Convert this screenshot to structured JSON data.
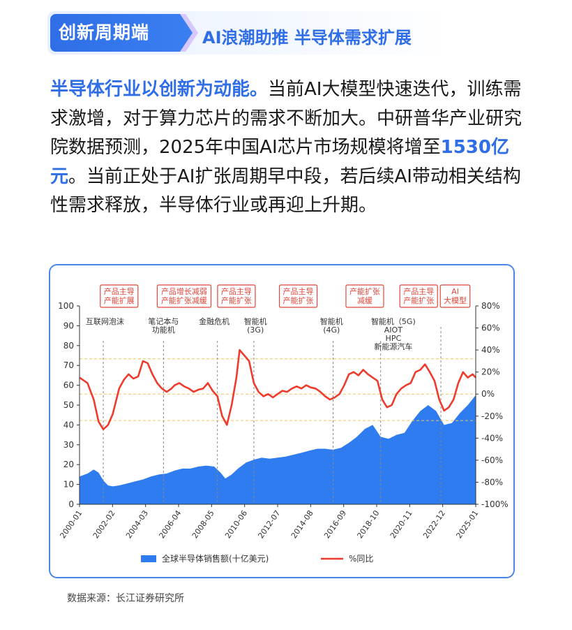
{
  "header": {
    "badge": "创新周期端",
    "subtitle": "AI浪潮助推 半导体需求扩展"
  },
  "paragraph": {
    "lead": "半导体行业以创新为动能。",
    "part1": "当前AI大模型快速迭代，训练需求激增，对于算力芯片的需求不断加大。中研普华产业研究院数据预测，2025年中国AI芯片市场规模将增至",
    "highlight": "1530亿元",
    "part2": "。当前正处于AI扩张周期早中段，若后续AI带动相关结构性需求释放，半导体行业或再迎上升期。"
  },
  "source": "数据来源：长江证券研究所",
  "colors": {
    "accent": "#2f6ee6",
    "area": "#2f7cf0",
    "line": "#ee3b2e",
    "phase_border": "#e0463a",
    "dashed_ref": "#f1c45a"
  },
  "chart_data": {
    "type": "area+line",
    "left_axis": {
      "min": 0,
      "max": 100,
      "ticks": [
        "0",
        "10",
        "20",
        "30",
        "40",
        "50",
        "60",
        "70",
        "80",
        "90",
        "100"
      ]
    },
    "right_axis": {
      "min": -100,
      "max": 80,
      "ticks": [
        "-100%",
        "-80%",
        "-60%",
        "-40%",
        "-20%",
        "0%",
        "20%",
        "40%",
        "60%",
        "80%"
      ]
    },
    "x_ticks": [
      "2000-01",
      "2002-02",
      "2004-03",
      "2006-04",
      "2008-05",
      "2010-06",
      "2012-07",
      "2014-08",
      "2016-09",
      "2018-10",
      "2020-11",
      "2022-12",
      "2025-01"
    ],
    "x_range": [
      2000.0,
      2025.0
    ],
    "ref_lines_right": [
      32,
      0,
      -24
    ],
    "legend": [
      {
        "name": "全球半导体销售额(十亿美元)",
        "kind": "area"
      },
      {
        "name": "%同比",
        "kind": "line"
      }
    ],
    "phases": [
      {
        "lines": [
          "产品主导",
          "产能扩展"
        ],
        "x": 2002.5
      },
      {
        "lines": [
          "产品增长减弱",
          "产能扩张减缓"
        ],
        "x": 2006.6
      },
      {
        "lines": [
          "产品主导",
          "产能扩张"
        ],
        "x": 2009.9
      },
      {
        "lines": [
          "产品主导",
          "产能扩张"
        ],
        "x": 2013.8
      },
      {
        "lines": [
          "产能扩张",
          "减缓"
        ],
        "x": 2018.0
      },
      {
        "lines": [
          "产品主导",
          "产能扩张"
        ],
        "x": 2021.4
      },
      {
        "lines": [
          "AI",
          "大模型"
        ],
        "x": 2023.7
      }
    ],
    "events": [
      {
        "lines": [
          "互联网泡沫"
        ],
        "x": 2001.6,
        "line_x": 2001.5
      },
      {
        "lines": [
          "笔记本与",
          "功能机"
        ],
        "x": 2005.3,
        "line_x": 2005.3
      },
      {
        "lines": [
          "金融危机"
        ],
        "x": 2008.5,
        "line_x": 2008.7
      },
      {
        "lines": [
          "智能机",
          "(3G)"
        ],
        "x": 2011.1,
        "line_x": 2011.0
      },
      {
        "lines": [
          "智能机",
          "(4G)"
        ],
        "x": 2015.9,
        "line_x": 2016.0
      },
      {
        "lines": [
          "智能机（5G)",
          "AIOT",
          "HPC",
          "新能源汽车"
        ],
        "x": 2019.8,
        "line_x": 2019.0
      }
    ],
    "sales": [
      [
        2000.0,
        14
      ],
      [
        2000.5,
        15.5
      ],
      [
        2000.9,
        17.5
      ],
      [
        2001.2,
        16
      ],
      [
        2001.5,
        12
      ],
      [
        2001.8,
        9.5
      ],
      [
        2002.1,
        9
      ],
      [
        2002.5,
        9.5
      ],
      [
        2003.0,
        10.5
      ],
      [
        2003.5,
        11.5
      ],
      [
        2004.0,
        12.5
      ],
      [
        2004.5,
        14
      ],
      [
        2005.0,
        15
      ],
      [
        2005.5,
        15.5
      ],
      [
        2006.0,
        17
      ],
      [
        2006.5,
        18
      ],
      [
        2007.0,
        18
      ],
      [
        2007.5,
        19
      ],
      [
        2008.0,
        19.5
      ],
      [
        2008.5,
        19
      ],
      [
        2008.9,
        16
      ],
      [
        2009.2,
        13
      ],
      [
        2009.6,
        15
      ],
      [
        2010.0,
        18
      ],
      [
        2010.5,
        21
      ],
      [
        2011.0,
        22.5
      ],
      [
        2011.5,
        23.5
      ],
      [
        2012.0,
        23
      ],
      [
        2012.5,
        23.5
      ],
      [
        2013.0,
        24
      ],
      [
        2013.5,
        25
      ],
      [
        2014.0,
        26
      ],
      [
        2014.5,
        27
      ],
      [
        2015.0,
        28
      ],
      [
        2015.5,
        28
      ],
      [
        2016.0,
        27.5
      ],
      [
        2016.5,
        28.5
      ],
      [
        2017.0,
        31
      ],
      [
        2017.5,
        34
      ],
      [
        2018.0,
        38
      ],
      [
        2018.5,
        40
      ],
      [
        2019.0,
        34
      ],
      [
        2019.5,
        33
      ],
      [
        2020.0,
        35
      ],
      [
        2020.5,
        36
      ],
      [
        2021.0,
        42
      ],
      [
        2021.5,
        47
      ],
      [
        2022.0,
        50
      ],
      [
        2022.5,
        47
      ],
      [
        2023.0,
        40
      ],
      [
        2023.5,
        41
      ],
      [
        2024.0,
        46
      ],
      [
        2024.5,
        50
      ],
      [
        2025.0,
        55
      ]
    ],
    "yoy": [
      [
        2000.0,
        15
      ],
      [
        2000.5,
        10
      ],
      [
        2000.9,
        -5
      ],
      [
        2001.2,
        -25
      ],
      [
        2001.5,
        -32
      ],
      [
        2001.8,
        -28
      ],
      [
        2002.1,
        -18
      ],
      [
        2002.5,
        5
      ],
      [
        2002.8,
        13
      ],
      [
        2003.1,
        18
      ],
      [
        2003.4,
        14
      ],
      [
        2003.7,
        16
      ],
      [
        2004.0,
        30
      ],
      [
        2004.3,
        28
      ],
      [
        2004.6,
        18
      ],
      [
        2004.9,
        10
      ],
      [
        2005.2,
        5
      ],
      [
        2005.5,
        2
      ],
      [
        2005.8,
        5
      ],
      [
        2006.0,
        8
      ],
      [
        2006.3,
        10
      ],
      [
        2006.6,
        7
      ],
      [
        2006.9,
        5
      ],
      [
        2007.2,
        2
      ],
      [
        2007.5,
        4
      ],
      [
        2007.8,
        5
      ],
      [
        2008.1,
        10
      ],
      [
        2008.4,
        3
      ],
      [
        2008.7,
        -2
      ],
      [
        2009.0,
        -20
      ],
      [
        2009.3,
        -28
      ],
      [
        2009.6,
        -10
      ],
      [
        2009.9,
        15
      ],
      [
        2010.1,
        40
      ],
      [
        2010.4,
        35
      ],
      [
        2010.7,
        30
      ],
      [
        2011.0,
        10
      ],
      [
        2011.3,
        2
      ],
      [
        2011.6,
        -2
      ],
      [
        2011.9,
        0
      ],
      [
        2012.2,
        -3
      ],
      [
        2012.5,
        0
      ],
      [
        2012.8,
        3
      ],
      [
        2013.1,
        2
      ],
      [
        2013.4,
        5
      ],
      [
        2013.7,
        7
      ],
      [
        2014.0,
        5
      ],
      [
        2014.3,
        8
      ],
      [
        2014.6,
        6
      ],
      [
        2014.9,
        5
      ],
      [
        2015.2,
        2
      ],
      [
        2015.5,
        -2
      ],
      [
        2015.8,
        -5
      ],
      [
        2016.1,
        -3
      ],
      [
        2016.4,
        0
      ],
      [
        2016.7,
        8
      ],
      [
        2017.0,
        18
      ],
      [
        2017.3,
        20
      ],
      [
        2017.6,
        17
      ],
      [
        2017.9,
        22
      ],
      [
        2018.2,
        18
      ],
      [
        2018.5,
        15
      ],
      [
        2018.8,
        12
      ],
      [
        2019.1,
        -5
      ],
      [
        2019.4,
        -12
      ],
      [
        2019.7,
        -10
      ],
      [
        2020.0,
        0
      ],
      [
        2020.3,
        5
      ],
      [
        2020.6,
        8
      ],
      [
        2020.9,
        10
      ],
      [
        2021.2,
        20
      ],
      [
        2021.5,
        22
      ],
      [
        2021.8,
        27
      ],
      [
        2022.1,
        20
      ],
      [
        2022.4,
        12
      ],
      [
        2022.7,
        -5
      ],
      [
        2023.0,
        -15
      ],
      [
        2023.3,
        -12
      ],
      [
        2023.6,
        -5
      ],
      [
        2023.9,
        10
      ],
      [
        2024.2,
        20
      ],
      [
        2024.5,
        15
      ],
      [
        2024.8,
        18
      ],
      [
        2025.0,
        15
      ]
    ]
  }
}
